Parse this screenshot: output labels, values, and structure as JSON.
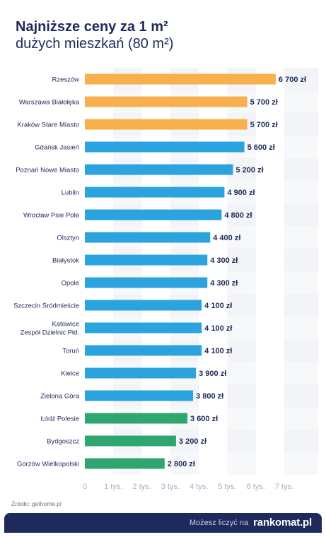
{
  "header": {
    "title": "Najniższe ceny za 1 m²",
    "subtitle": "dużych mieszkań (80 m²)"
  },
  "colors": {
    "orange": "#f8b04e",
    "blue": "#2aa3df",
    "green": "#2fa66f",
    "text": "#1f2a5c",
    "axis": "#a9aec4",
    "band": "#f3f4f7"
  },
  "chart_data": {
    "type": "bar",
    "orientation": "horizontal",
    "categories": [
      "Rzeszów",
      "Warszawa Białołęka",
      "Kraków Stare Miasto",
      "Gdańsk Jasień",
      "Poznań Nowe Miasto",
      "Lublin",
      "Wrocław Psie Pole",
      "Olsztyn",
      "Białystok",
      "Opole",
      "Szczecin Śródmieście",
      "Katowice\nZespół Dzielnic Płd.",
      "Toruń",
      "Kielce",
      "Zielona Góra",
      "Łódź Polesie",
      "Bydgoszcz",
      "Gorzów Wielkopolski"
    ],
    "values": [
      6700,
      5700,
      5700,
      5600,
      5200,
      4900,
      4800,
      4400,
      4300,
      4300,
      4100,
      4100,
      4100,
      3900,
      3800,
      3600,
      3200,
      2800
    ],
    "value_labels": [
      "6 700 zł",
      "5 700 zł",
      "5 700 zł",
      "5 600 zł",
      "5 200 zł",
      "4 900 zł",
      "4 800 zł",
      "4 400 zł",
      "4 300 zł",
      "4 300 zł",
      "4 100 zł",
      "4 100 zł",
      "4 100 zł",
      "3 900 zł",
      "3 800 zł",
      "3 600 zł",
      "3 200 zł",
      "2 800 zł"
    ],
    "bar_colors": [
      "orange",
      "orange",
      "orange",
      "blue",
      "blue",
      "blue",
      "blue",
      "blue",
      "blue",
      "blue",
      "blue",
      "blue",
      "blue",
      "blue",
      "blue",
      "green",
      "green",
      "green"
    ],
    "x_ticks": [
      0,
      1000,
      2000,
      3000,
      4000,
      5000,
      6000,
      7000
    ],
    "x_tick_labels": [
      "0",
      "1 tys.",
      "2 tys.",
      "3 tys.",
      "4 tys.",
      "5 tys.",
      "6 tys.",
      "7 tys."
    ],
    "xlim": [
      0,
      7000
    ],
    "grid": "alternating vertical bands"
  },
  "footer": {
    "source": "Źródło: gethome.pl",
    "tagline": "Możesz liczyć na",
    "brand": "rankomat.pl"
  }
}
